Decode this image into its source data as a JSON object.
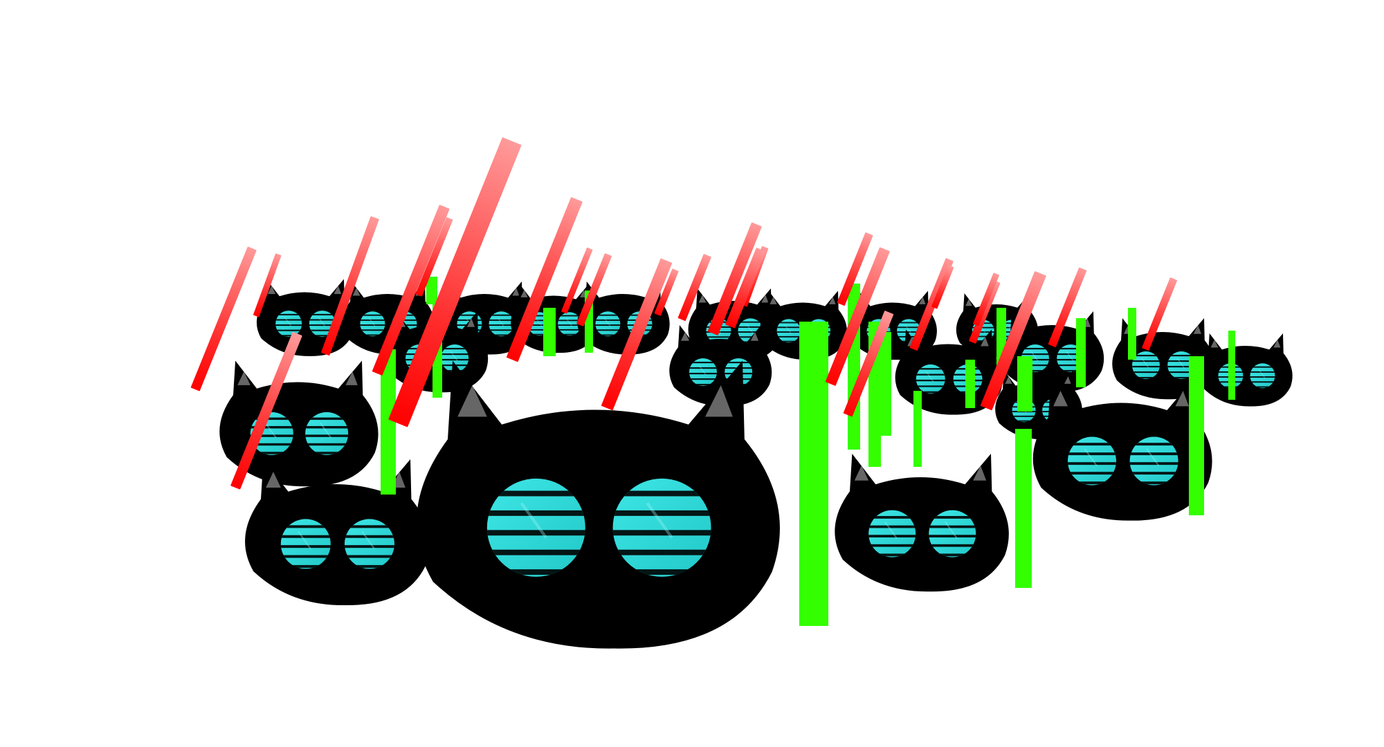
{
  "scene": {
    "background_color": "#ffffff",
    "body_color": "#000000",
    "ear_color": "#666666",
    "eye_color": "#33dddd",
    "eye_stripe_color": "#000000",
    "red_streak_color": "#ff0000",
    "red_streak_fade_color": "#ff9a9a",
    "green_bar_color": "#33ff00"
  },
  "icons": {
    "creature": "cat-head-icon",
    "eye": "striped-eye-icon",
    "red_projectile": "red-streak-icon",
    "green_projectile": "green-bar-icon"
  }
}
